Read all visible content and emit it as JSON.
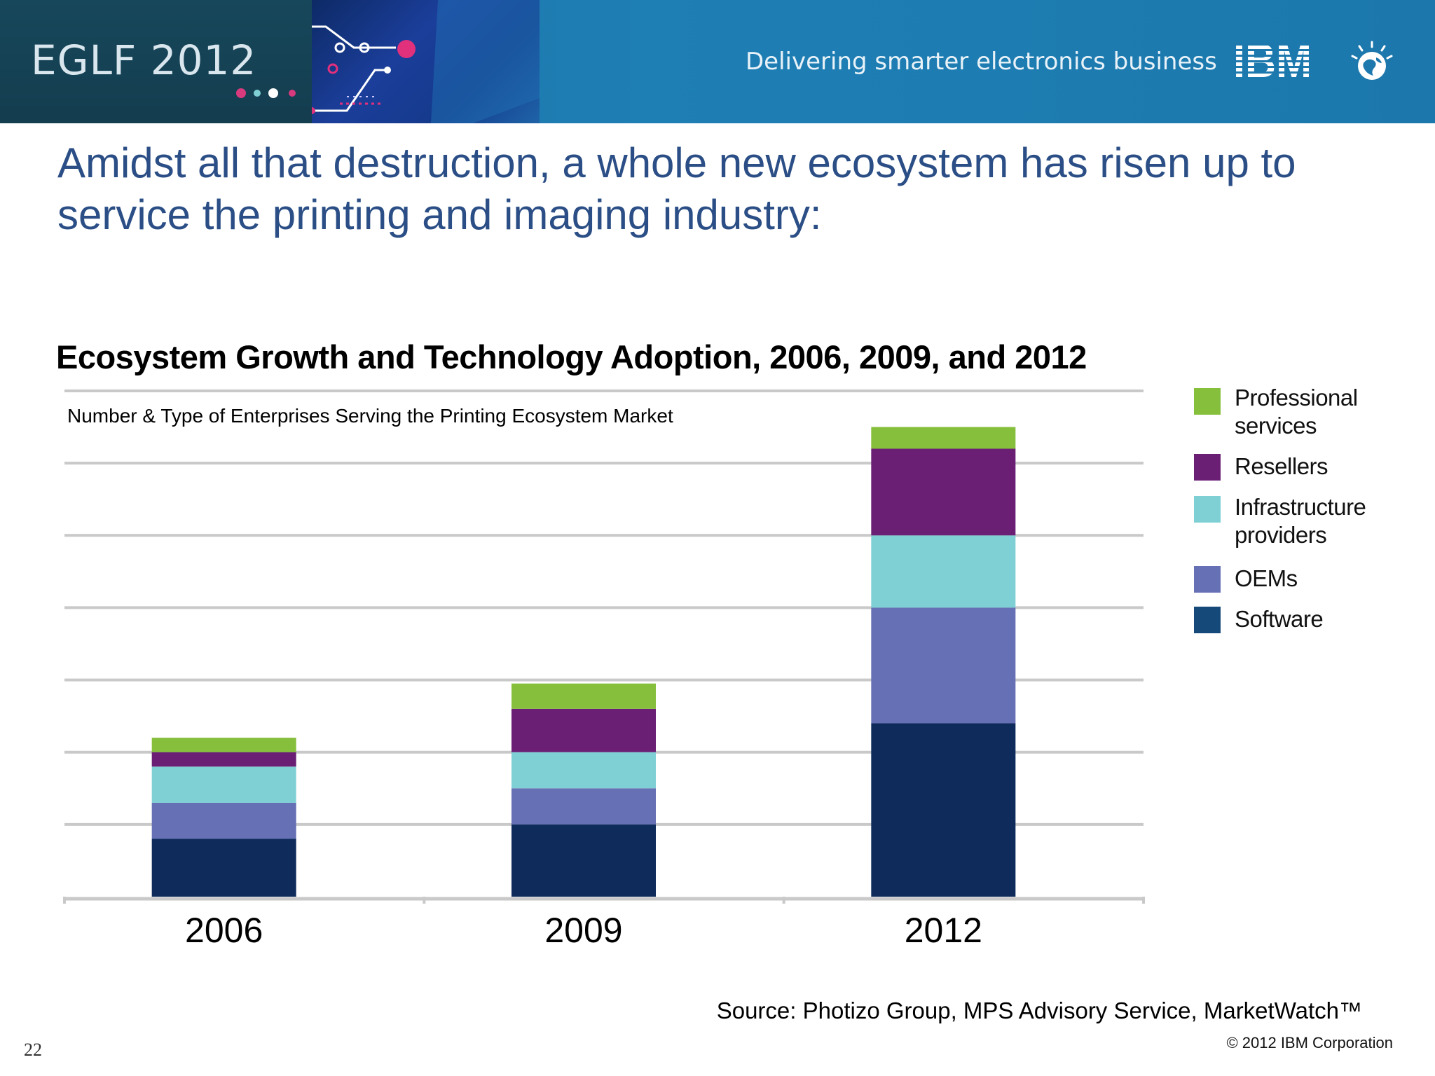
{
  "header": {
    "conference": "EGLF 2012",
    "tagline": "Delivering smarter electronics business",
    "logo_text": "IBM"
  },
  "headline": "Amidst all that destruction, a whole new ecosystem has risen up to service the printing and imaging industry:",
  "chart_data": {
    "type": "bar",
    "stacked": true,
    "title": "Ecosystem Growth and Technology Adoption, 2006, 2009, and 2012",
    "subtitle": "Number & Type of Enterprises Serving the Printing Ecosystem Market",
    "xlabel": "",
    "ylabel": "",
    "ylim": [
      0,
      7
    ],
    "yticks_shown": false,
    "grid": true,
    "legend_position": "right",
    "categories": [
      "2006",
      "2009",
      "2012"
    ],
    "series": [
      {
        "name": "Software",
        "color": "#0e2b5c",
        "values": [
          0.8,
          1.0,
          2.4
        ]
      },
      {
        "name": "OEMs",
        "color": "#6670b4",
        "values": [
          0.5,
          0.5,
          1.6
        ]
      },
      {
        "name": "Infrastructure providers",
        "color": "#7fd0d5",
        "values": [
          0.5,
          0.5,
          1.0
        ]
      },
      {
        "name": "Resellers",
        "color": "#6a1f75",
        "values": [
          0.2,
          0.6,
          1.2
        ]
      },
      {
        "name": "Professional services",
        "color": "#86bf3c",
        "values": [
          0.2,
          0.35,
          0.3
        ]
      }
    ]
  },
  "legend": [
    {
      "label": "Professional services",
      "color": "#86bf3c"
    },
    {
      "label": "Resellers",
      "color": "#6a1f75"
    },
    {
      "label": "Infrastructure providers",
      "color": "#7fd0d5"
    },
    {
      "label": "OEMs",
      "color": "#6670b4"
    },
    {
      "label": "Software",
      "color": "#14497a"
    }
  ],
  "footer": {
    "source": "Source: Photizo Group, MPS Advisory Service, MarketWatch™",
    "copyright": "© 2012 IBM Corporation",
    "page_number": "22"
  }
}
